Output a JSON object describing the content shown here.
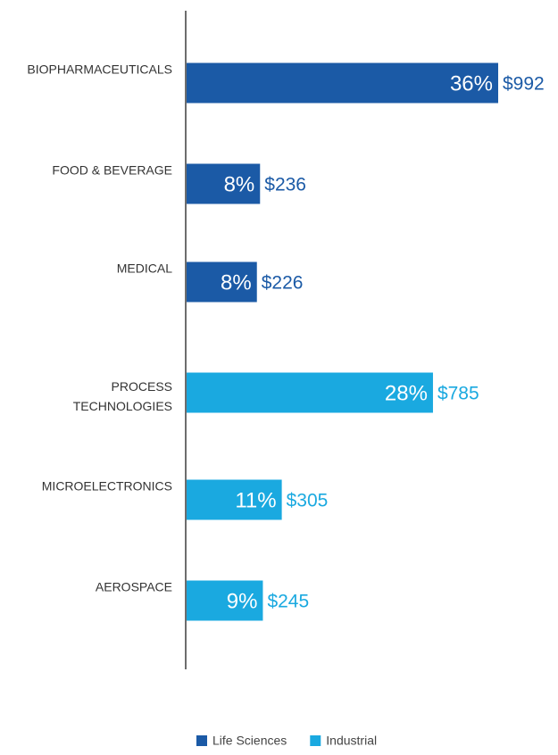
{
  "chart_data": {
    "type": "bar",
    "orientation": "horizontal",
    "categories": [
      "BIOPHARMACEUTICALS",
      "FOOD & BEVERAGE",
      "MEDICAL",
      "PROCESS TECHNOLOGIES",
      "MICROELECTRONICS",
      "AEROSPACE"
    ],
    "series": [
      {
        "name": "Life Sciences",
        "color": "#1b5aa6",
        "values": [
          992,
          236,
          226,
          null,
          null,
          null
        ],
        "value_labels": [
          "$992",
          "$236",
          "$226",
          null,
          null,
          null
        ],
        "share_labels": [
          "36%",
          "8%",
          "8%",
          null,
          null,
          null
        ]
      },
      {
        "name": "Industrial",
        "color": "#1aa9e0",
        "values": [
          null,
          null,
          null,
          785,
          305,
          245
        ],
        "value_labels": [
          null,
          null,
          null,
          "$785",
          "$305",
          "$245"
        ],
        "share_labels": [
          null,
          null,
          null,
          "28%",
          "11%",
          "9%"
        ]
      }
    ],
    "legend": "bottom"
  }
}
